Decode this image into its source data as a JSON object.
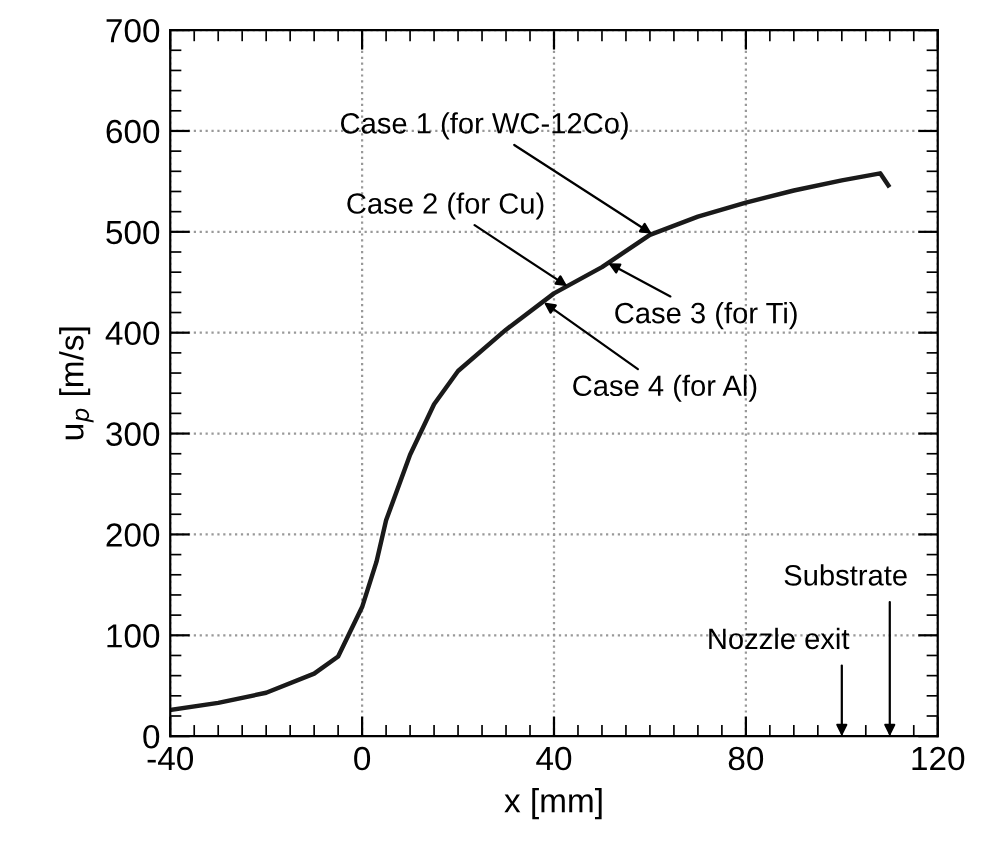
{
  "chart_data": {
    "type": "line",
    "xlabel": "x [mm]",
    "ylabel": "u$_{p}$ [m/s]",
    "x": [
      -40,
      -30,
      -20,
      -10,
      -5,
      0,
      3,
      5,
      10,
      15,
      20,
      30,
      40,
      50,
      60,
      70,
      80,
      90,
      100,
      108,
      109.7
    ],
    "series": [
      {
        "color": "#1a1a1a",
        "values": [
          26,
          33,
          43,
          62,
          79,
          128,
          173,
          214,
          279,
          329,
          362,
          403,
          439,
          465,
          497,
          515,
          529,
          541,
          551,
          558,
          546
        ]
      }
    ],
    "xlim": [
      -40,
      120
    ],
    "xticks": [
      -40,
      0,
      40,
      80,
      120
    ],
    "ylim": [
      0,
      700
    ],
    "yticks": [
      0,
      100,
      200,
      300,
      400,
      500,
      600,
      700
    ],
    "grid": true,
    "marker": "none",
    "line_style": "solid",
    "annotations": [
      {
        "text": "Case 1 (for WC-12Co)",
        "x": 60.4,
        "y": 498
      },
      {
        "text": "Case 2 (for Cu)",
        "x": 42.8,
        "y": 446
      },
      {
        "text": "Case 3 (for Ti)",
        "x": 51.3,
        "y": 469
      },
      {
        "text": "Case 4 (for Al)",
        "x": 37.9,
        "y": 430
      },
      "Nozzle exit",
      "Substrate"
    ]
  }
}
